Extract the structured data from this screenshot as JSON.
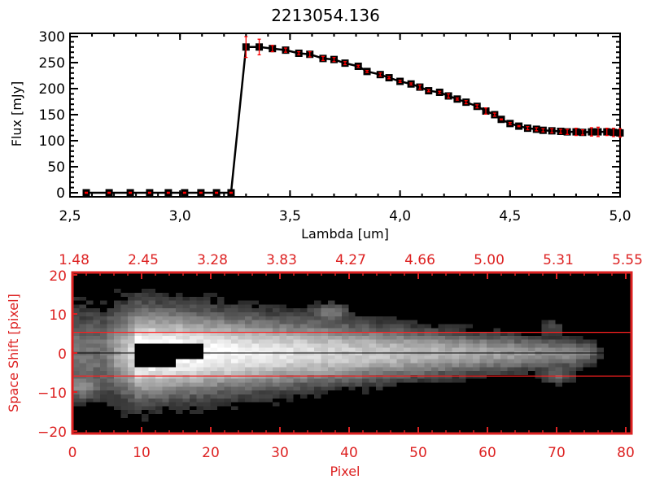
{
  "chart_data": [
    {
      "type": "line",
      "title": "2213054.136",
      "xlabel": "Lambda [um]",
      "ylabel": "Flux [mJy]",
      "xlim": [
        2.5,
        5.0
      ],
      "ylim": [
        -10,
        310
      ],
      "xticks": [
        "2.5",
        "3.0",
        "3.5",
        "4.0",
        "4.5",
        "5.0"
      ],
      "yticks": [
        "0",
        "50",
        "100",
        "150",
        "200",
        "250",
        "300"
      ],
      "grid": false,
      "series": [
        {
          "name": "flux",
          "x": [
            2.574,
            2.678,
            2.774,
            2.862,
            2.947,
            3.021,
            3.095,
            3.166,
            3.232,
            3.3,
            3.36,
            3.42,
            3.48,
            3.54,
            3.59,
            3.65,
            3.7,
            3.75,
            3.81,
            3.85,
            3.91,
            3.95,
            4.0,
            4.05,
            4.09,
            4.13,
            4.18,
            4.22,
            4.26,
            4.3,
            4.35,
            4.39,
            4.43,
            4.46,
            4.5,
            4.54,
            4.58,
            4.62,
            4.65,
            4.69,
            4.73,
            4.76,
            4.8,
            4.83,
            4.87,
            4.9,
            4.94,
            4.97,
            5.0
          ],
          "y": [
            0,
            0,
            0,
            0,
            0,
            0,
            0,
            0,
            0,
            280,
            280,
            277,
            274,
            268,
            266,
            258,
            256,
            249,
            243,
            233,
            227,
            221,
            214,
            209,
            203,
            196,
            193,
            186,
            180,
            174,
            166,
            157,
            150,
            141,
            133,
            128,
            124,
            122,
            120,
            119,
            118,
            117,
            117,
            116,
            117,
            117,
            117,
            116,
            115
          ],
          "err": [
            1,
            1,
            1,
            1,
            1,
            1,
            1,
            1,
            1,
            20,
            15,
            6,
            4,
            3,
            5,
            4,
            4,
            3,
            2,
            2,
            3,
            2,
            2,
            2,
            4,
            2,
            2,
            4,
            2,
            3,
            3,
            6,
            3,
            1,
            2,
            1,
            3,
            3,
            3,
            4,
            4,
            5,
            7,
            5,
            8,
            9,
            7,
            8,
            8
          ],
          "marker_color": "#000000",
          "error_color": "#ff0000"
        }
      ]
    },
    {
      "type": "heatmap",
      "xlabel": "Pixel",
      "ylabel": "Space Shift [pixel]",
      "xlim": [
        0,
        81
      ],
      "ylim": [
        -21,
        21
      ],
      "xticks": [
        "0",
        "10",
        "20",
        "30",
        "40",
        "50",
        "60",
        "70",
        "80"
      ],
      "yticks": [
        "20",
        "10",
        "0",
        "-10",
        "-20"
      ],
      "top_xticks": [
        "1.48",
        "2.45",
        "3.28",
        "3.83",
        "4.27",
        "4.66",
        "5.00",
        "5.31",
        "5.55"
      ],
      "extraction_aperture": [
        -3,
        3
      ],
      "center_line": 0,
      "axis_color": "#dd2222",
      "colormap": "gray"
    }
  ]
}
